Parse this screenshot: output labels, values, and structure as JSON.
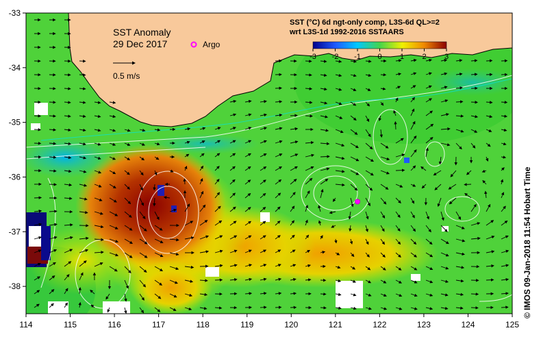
{
  "map": {
    "title": "SST Anomaly",
    "date": "29 Dec 2017",
    "argo_label": "Argo",
    "vector_scale_label": "0.5 m/s",
    "legend_line1": "SST (°C) 6d ngt-only comp, L3S-6d QL>=2",
    "legend_line2": "wrt L3S-1d 1992-2016 SSTAARS",
    "legend_ticks": [
      "-3",
      "-2",
      "-1",
      "0",
      "1",
      "2",
      "3"
    ],
    "lon_ticks": [
      "114",
      "115",
      "116",
      "117",
      "118",
      "119",
      "120",
      "121",
      "122",
      "123",
      "124",
      "125"
    ],
    "lat_ticks": [
      "-33",
      "-34",
      "-35",
      "-36",
      "-37",
      "-38"
    ],
    "credit": "© IMOS 09-Jan-2018 11:54 Hobart Time",
    "argo_float": {
      "lon": 121.5,
      "lat": -36.45
    },
    "colors": {
      "land": "#f8c99b",
      "argo": "#ff00ff",
      "ocean": "#4fd23a"
    }
  }
}
